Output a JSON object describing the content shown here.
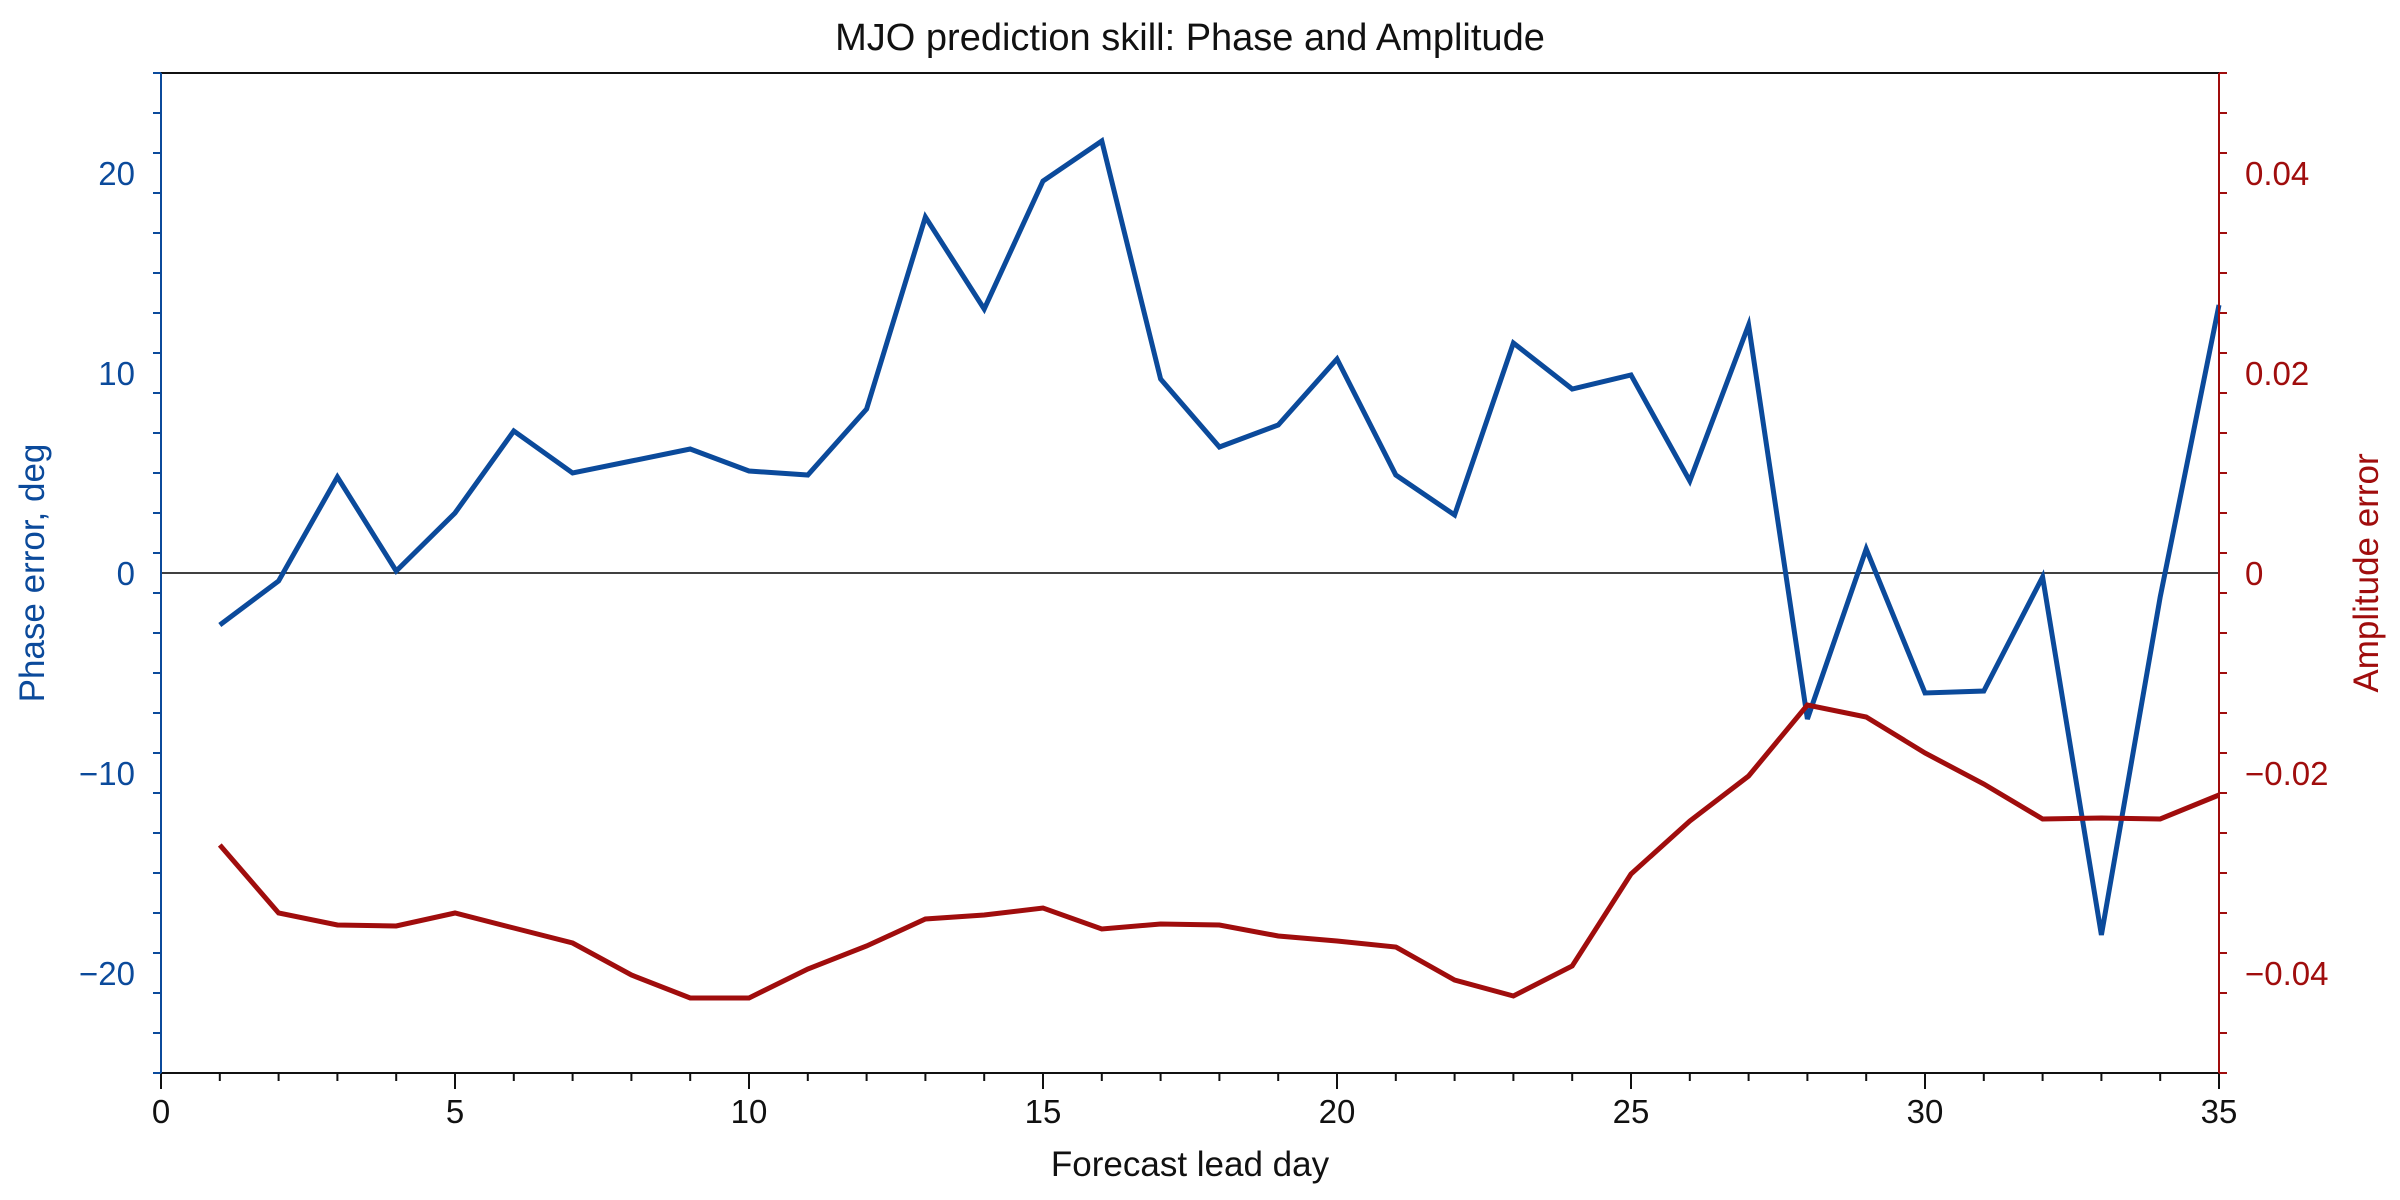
{
  "chart_data": {
    "type": "line",
    "title": "MJO prediction skill: Phase and Amplitude",
    "xlabel": "Forecast lead day",
    "ylabel_left": "Phase error, deg",
    "ylabel_right": "Amplitude error",
    "xlim": [
      0,
      35
    ],
    "ylim_left": [
      -25,
      25
    ],
    "ylim_right": [
      -0.05,
      0.05
    ],
    "x_ticks": [
      "0",
      "5",
      "10",
      "15",
      "20",
      "25",
      "30",
      "35"
    ],
    "y_ticks_left": [
      "−20",
      "−10",
      "0",
      "10",
      "20"
    ],
    "y_ticks_right": [
      "−0.04",
      "−0.02",
      "0",
      "0.02",
      "0.04"
    ],
    "grid": false,
    "zero_line": true,
    "colors": {
      "phase": "#0b4a9b",
      "amplitude": "#a00d0d",
      "axis": "#111111"
    },
    "x": [
      1,
      2,
      3,
      4,
      5,
      6,
      7,
      8,
      9,
      10,
      11,
      12,
      13,
      14,
      15,
      16,
      17,
      18,
      19,
      20,
      21,
      22,
      23,
      24,
      25,
      26,
      27,
      28,
      29,
      30,
      31,
      32,
      33,
      34,
      35
    ],
    "series": [
      {
        "key": "phase",
        "axis": "left",
        "values": [
          -2.6,
          -0.4,
          4.8,
          0.1,
          3.0,
          7.1,
          5.0,
          5.6,
          6.2,
          5.1,
          4.9,
          8.2,
          17.8,
          13.2,
          19.6,
          21.6,
          9.7,
          6.3,
          7.4,
          10.7,
          4.9,
          2.9,
          11.5,
          9.2,
          9.9,
          4.6,
          12.4,
          -7.3,
          1.2,
          -6.0,
          -5.9,
          -0.2,
          -18.1,
          -1.2,
          13.4
        ]
      },
      {
        "key": "amplitude",
        "axis": "right",
        "values": [
          -0.0272,
          -0.034,
          -0.0352,
          -0.0353,
          -0.034,
          -0.0355,
          -0.037,
          -0.0402,
          -0.0425,
          -0.0425,
          -0.0396,
          -0.0373,
          -0.0346,
          -0.0342,
          -0.0335,
          -0.0356,
          -0.0351,
          -0.0352,
          -0.0363,
          -0.0368,
          -0.0374,
          -0.0407,
          -0.0423,
          -0.0393,
          -0.0301,
          -0.0248,
          -0.0203,
          -0.0132,
          -0.0144,
          -0.018,
          -0.0211,
          -0.0246,
          -0.0245,
          -0.0246,
          -0.0222
        ]
      }
    ]
  }
}
